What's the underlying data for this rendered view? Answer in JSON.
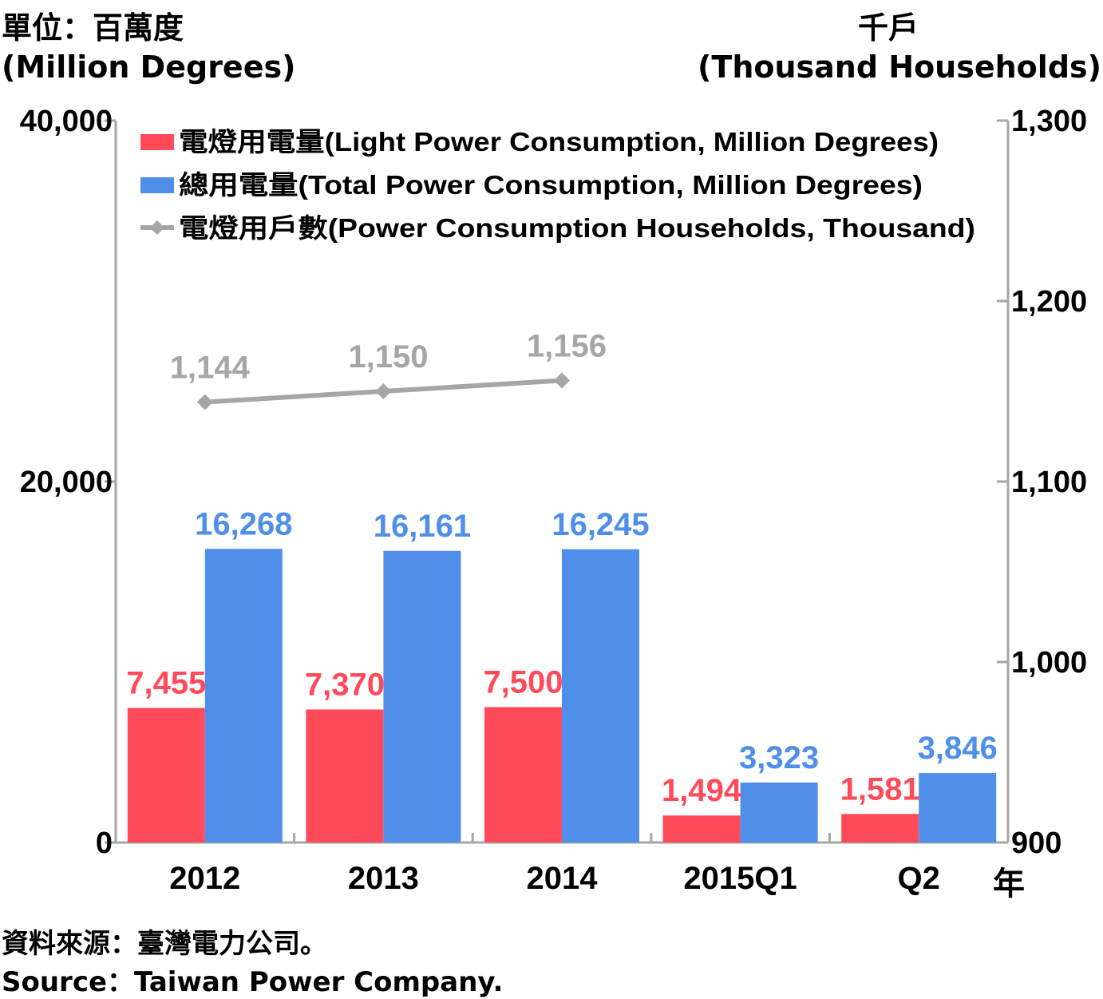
{
  "chart_data": {
    "type": "bar",
    "left_unit_zh": "單位：百萬度",
    "left_unit_en": "(Million Degrees)",
    "right_unit_zh": "千戶",
    "right_unit_en": "(Thousand Households)",
    "x_unit": "年",
    "categories": [
      "2012",
      "2013",
      "2014",
      "2015Q1",
      "Q2"
    ],
    "y_left": {
      "range": [
        0,
        40000
      ],
      "ticks": [
        "0",
        "20,000",
        "40,000"
      ]
    },
    "y_right": {
      "range": [
        900,
        1300
      ],
      "ticks": [
        "900",
        "1,000",
        "1,100",
        "1,200",
        "1,300"
      ]
    },
    "series": [
      {
        "name": "電燈用電量(Light Power Consumption, Million Degrees)",
        "kind": "bar",
        "axis": "left",
        "color": "#ff4a5a",
        "values": [
          7455,
          7370,
          7500,
          1494,
          1581
        ],
        "labels": [
          "7,455",
          "7,370",
          "7,500",
          "1,494",
          "1,581"
        ]
      },
      {
        "name": "總用電量(Total Power Consumption, Million Degrees)",
        "kind": "bar",
        "axis": "left",
        "color": "#4f8fea",
        "values": [
          16268,
          16161,
          16245,
          3323,
          3846
        ],
        "labels": [
          "16,268",
          "16,161",
          "16,245",
          "3,323",
          "3,846"
        ]
      },
      {
        "name": "電燈用戶數(Power Consumption Households, Thousand)",
        "kind": "line",
        "axis": "right",
        "color": "#a6a6a6",
        "values": [
          1144,
          1150,
          1156,
          null,
          null
        ],
        "labels": [
          "1,144",
          "1,150",
          "1,156",
          "",
          ""
        ]
      }
    ],
    "legend_position": "top-left",
    "grid": false
  },
  "source": {
    "zh": "資料來源：臺灣電力公司。",
    "en": "Source：Taiwan Power Company."
  }
}
